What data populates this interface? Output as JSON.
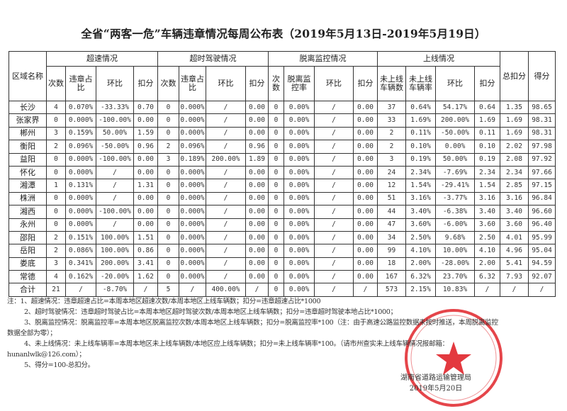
{
  "title": "全省“两客一危”车辆违章情况每周公布表（2019年5月13日-2019年5月19日）",
  "headers": {
    "region": "区域名称",
    "groups": [
      "超速情况",
      "超时驾驶情况",
      "脱离监控情况",
      "上线情况"
    ],
    "total_deduction": "总扣分",
    "score": "得分",
    "sub": [
      "次数",
      "违章占比",
      "环比",
      "扣分",
      "次数",
      "违章占比",
      "环比",
      "扣分",
      "次数",
      "脱离监控率",
      "环比",
      "扣分",
      "未上线车辆数",
      "未上线车辆率",
      "环比",
      "扣分"
    ]
  },
  "rows": [
    [
      "长沙",
      "4",
      "0.070%",
      "-33.33%",
      "0.70",
      "0",
      "0.000%",
      "/",
      "0.00",
      "0",
      "0.00%",
      "/",
      "0.00",
      "37",
      "0.64%",
      "54.17%",
      "0.64",
      "1.35",
      "98.65"
    ],
    [
      "张家界",
      "0",
      "0.000%",
      "-100.00%",
      "0.00",
      "0",
      "0.000%",
      "/",
      "0.00",
      "0",
      "0.00%",
      "/",
      "0.00",
      "33",
      "1.69%",
      "200.00%",
      "1.69",
      "1.69",
      "98.31"
    ],
    [
      "郴州",
      "3",
      "0.159%",
      "50.00%",
      "1.59",
      "0",
      "0.000%",
      "/",
      "0.00",
      "0",
      "0.00%",
      "/",
      "0.00",
      "2",
      "0.11%",
      "-50.00%",
      "0.11",
      "1.69",
      "98.31"
    ],
    [
      "衡阳",
      "2",
      "0.096%",
      "-50.00%",
      "0.96",
      "2",
      "0.096%",
      "/",
      "0.96",
      "0",
      "0.00%",
      "/",
      "0.00",
      "2",
      "0.10%",
      "0.00%",
      "0.10",
      "2.02",
      "97.98"
    ],
    [
      "益阳",
      "0",
      "0.000%",
      "-100.00%",
      "0.00",
      "3",
      "0.189%",
      "200.00%",
      "1.89",
      "0",
      "0.00%",
      "/",
      "0.00",
      "3",
      "0.19%",
      "50.00%",
      "0.19",
      "2.08",
      "97.92"
    ],
    [
      "怀化",
      "0",
      "0.000%",
      "/",
      "0.00",
      "0",
      "0.000%",
      "/",
      "0.00",
      "0",
      "0.00%",
      "/",
      "0.00",
      "24",
      "2.34%",
      "-7.69%",
      "2.34",
      "2.34",
      "97.66"
    ],
    [
      "湘潭",
      "1",
      "0.131%",
      "/",
      "1.31",
      "0",
      "0.000%",
      "/",
      "0.00",
      "0",
      "0.00%",
      "/",
      "0.00",
      "12",
      "1.54%",
      "-29.41%",
      "1.54",
      "2.85",
      "97.15"
    ],
    [
      "株洲",
      "0",
      "0.000%",
      "/",
      "0.00",
      "0",
      "0.000%",
      "/",
      "0.00",
      "0",
      "0.00%",
      "/",
      "0.00",
      "51",
      "3.16%",
      "-3.77%",
      "3.16",
      "3.16",
      "96.84"
    ],
    [
      "湘西",
      "0",
      "0.000%",
      "-100.00%",
      "0.00",
      "0",
      "0.000%",
      "/",
      "0.00",
      "0",
      "0.00%",
      "/",
      "0.00",
      "44",
      "3.40%",
      "-6.38%",
      "3.40",
      "3.40",
      "96.60"
    ],
    [
      "永州",
      "0",
      "0.000%",
      "/",
      "0.00",
      "0",
      "0.000%",
      "/",
      "0.00",
      "0",
      "0.00%",
      "/",
      "0.00",
      "47",
      "3.60%",
      "-6.00%",
      "3.60",
      "3.60",
      "96.40"
    ],
    [
      "邵阳",
      "2",
      "0.151%",
      "100.00%",
      "1.51",
      "0",
      "0.000%",
      "/",
      "0.00",
      "0",
      "0.00%",
      "/",
      "0.00",
      "34",
      "2.50%",
      "9.68%",
      "2.50",
      "4.01",
      "95.99"
    ],
    [
      "岳阳",
      "2",
      "0.086%",
      "100.00%",
      "0.86",
      "0",
      "0.000%",
      "/",
      "0.00",
      "0",
      "0.00%",
      "/",
      "0.00",
      "99",
      "4.10%",
      "10.00%",
      "4.10",
      "4.96",
      "95.04"
    ],
    [
      "娄底",
      "3",
      "0.341%",
      "200.00%",
      "3.41",
      "0",
      "0.000%",
      "/",
      "0.00",
      "0",
      "0.00%",
      "/",
      "0.00",
      "18",
      "2.00%",
      "-28.00%",
      "2.00",
      "5.41",
      "94.59"
    ],
    [
      "常德",
      "4",
      "0.162%",
      "-20.00%",
      "1.62",
      "0",
      "0.000%",
      "/",
      "0.00",
      "0",
      "0.00%",
      "/",
      "0.00",
      "167",
      "6.32%",
      "23.70%",
      "6.32",
      "7.93",
      "92.07"
    ],
    [
      "合计",
      "21",
      "/",
      "-8.70%",
      "/",
      "5",
      "/",
      "400.00%",
      "/",
      "0",
      "0.00%",
      "/",
      "/",
      "573",
      "2.15%",
      "10.83%",
      "/",
      "/",
      "/"
    ]
  ],
  "notes": [
    "注：1、超速情况：违章超速占比=本周本地区超速次数/本周本地区上线车辆数；扣分=违章超速占比*1000",
    "2、超时驾驶情况：违章超时驾驶占比=本周本地区超时驾驶次数/本周本地区上线车辆数；扣分=违章超时驾驶本地占比*1000；",
    "3、脱离监控情况：脱离监控率=本周本地区脱离监控次数/本周本地区上线车辆数；扣分=脱离监控率*100（注：由于高速公路监控数据未按时推送，本周脱离监控",
    "数据全部为零）；",
    "4、未上线情况：未上线车辆率=本周本地区未上线车辆数/本地区应上线车辆数；扣分=未上线车辆率*100。（请市州查实未上线车辆情况报邮箱：",
    "hunanlwlk@126.com）；",
    "5、得分=100-总扣分。"
  ],
  "signature": {
    "org": "湖南省道路运输管理局",
    "date": "2019年5月20日"
  },
  "stamp": {
    "text": "湖南省道路运输管理局",
    "color": "#e0242a"
  }
}
